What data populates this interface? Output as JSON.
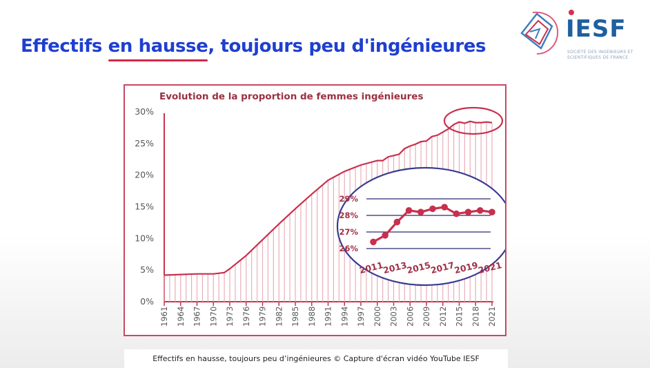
{
  "headline": {
    "before": "Effectifs ",
    "highlight": "en hausse",
    "after": ", toujours peu d'ingénieures"
  },
  "logo": {
    "word": "IESF",
    "subtitle_line1": "SOCIÉTÉ DES INGÉNIEURS ET",
    "subtitle_line2": "SCIENTIFIQUES DE FRANCE"
  },
  "caption": "Effectifs en hausse, toujours peu d’ingénieures © Capture d'écran vidéo YouTube IESF",
  "colors": {
    "accent": "#c8304e",
    "headline": "#1f3fd0",
    "inset_ring": "#3a3a90",
    "grid": "#2a2a70"
  },
  "chart_data": [
    {
      "type": "area",
      "title": "Evolution de la proportion de femmes ingénieures",
      "xlabel": "",
      "ylabel": "",
      "ylim": [
        0,
        30
      ],
      "yticks": [
        0,
        5,
        10,
        15,
        20,
        25,
        30
      ],
      "ytick_labels": [
        "0%",
        "5%",
        "10%",
        "15%",
        "20%",
        "25%",
        "30%"
      ],
      "xticks": [
        1961,
        1964,
        1967,
        1970,
        1973,
        1976,
        1979,
        1982,
        1985,
        1988,
        1991,
        1994,
        1997,
        2000,
        2003,
        2006,
        2009,
        2012,
        2015,
        2018,
        2021
      ],
      "x": [
        1961,
        1964,
        1967,
        1970,
        1972,
        1973,
        1976,
        1979,
        1982,
        1985,
        1988,
        1991,
        1994,
        1997,
        2000,
        2001,
        2002,
        2003,
        2004,
        2005,
        2006,
        2007,
        2008,
        2009,
        2010,
        2011,
        2012,
        2013,
        2014,
        2015,
        2016,
        2017,
        2018,
        2019,
        2020,
        2021
      ],
      "y": [
        4.2,
        4.3,
        4.4,
        4.4,
        4.6,
        5.2,
        7.3,
        9.8,
        12.3,
        14.7,
        17.0,
        19.2,
        20.6,
        21.6,
        22.3,
        22.3,
        22.9,
        23.1,
        23.3,
        24.2,
        24.6,
        24.9,
        25.3,
        25.4,
        26.1,
        26.3,
        26.8,
        27.3,
        28.0,
        28.4,
        28.2,
        28.5,
        28.3,
        28.3,
        28.4,
        28.3
      ],
      "annotation": "highlight ellipse around 2013–2021"
    },
    {
      "type": "line",
      "title": "",
      "x": [
        2011,
        2012,
        2013,
        2014,
        2015,
        2016,
        2017,
        2018,
        2019,
        2020,
        2021
      ],
      "y": [
        26.4,
        26.8,
        27.6,
        28.3,
        28.2,
        28.4,
        28.5,
        28.1,
        28.2,
        28.3,
        28.2
      ],
      "ylim": [
        26,
        29
      ],
      "yticks": [
        26,
        27,
        28,
        29
      ],
      "ytick_labels": [
        "26%",
        "27%",
        "28%",
        "29%"
      ],
      "xticks": [
        2011,
        2013,
        2015,
        2017,
        2019,
        2021
      ],
      "annotation": "zoom inset circled in blue"
    }
  ]
}
